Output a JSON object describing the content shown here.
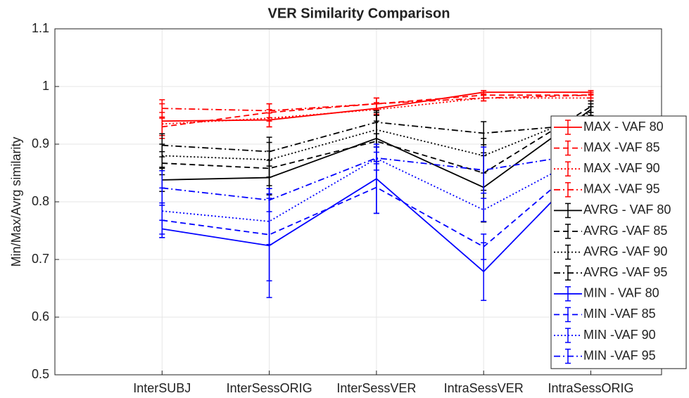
{
  "chart_data": {
    "type": "line",
    "title": "VER Similarity Comparison",
    "y_label": "Min/Max/Avrg similarity",
    "categories": [
      "InterSUBJ",
      "InterSessORIG",
      "InterSessVER",
      "IntraSessVER",
      "IntraSessORIG"
    ],
    "ylim": [
      0.5,
      1.1
    ],
    "yticks": [
      0.5,
      0.6,
      0.7,
      0.8,
      0.9,
      1,
      1.1
    ],
    "grid": true,
    "legend": "right",
    "series": [
      {
        "name": "MAX - VAF 80",
        "color": "#ff0000",
        "dash": "solid",
        "values": [
          0.94,
          0.942,
          0.962,
          0.99,
          0.99
        ],
        "errors": [
          0.03,
          0.012,
          0.01,
          0.003,
          0.003
        ]
      },
      {
        "name": "MAX -VAF 85",
        "color": "#ff0000",
        "dash": "dashed",
        "values": [
          0.93,
          0.955,
          0.97,
          0.985,
          0.985
        ],
        "errors": [
          0.015,
          0.015,
          0.01,
          0.005,
          0.005
        ]
      },
      {
        "name": "MAX -VAF 90",
        "color": "#ff0000",
        "dash": "dotted",
        "values": [
          0.935,
          0.945,
          0.96,
          0.98,
          0.98
        ],
        "errors": [
          0.02,
          0.015,
          0.01,
          0.005,
          0.005
        ]
      },
      {
        "name": "MAX -VAF 95",
        "color": "#ff0000",
        "dash": "dashdot",
        "values": [
          0.962,
          0.958,
          0.97,
          0.98,
          0.985
        ],
        "errors": [
          0.015,
          0.012,
          0.01,
          0.005,
          0.005
        ]
      },
      {
        "name": "AVRG - VAF 80",
        "color": "#000000",
        "dash": "solid",
        "values": [
          0.838,
          0.842,
          0.91,
          0.825,
          0.96
        ],
        "errors": [
          0.02,
          0.03,
          0.04,
          0.06,
          0.01
        ]
      },
      {
        "name": "AVRG -VAF 85",
        "color": "#000000",
        "dash": "dashed",
        "values": [
          0.867,
          0.858,
          0.905,
          0.85,
          0.965
        ],
        "errors": [
          0.02,
          0.03,
          0.035,
          0.03,
          0.01
        ]
      },
      {
        "name": "AVRG -VAF 90",
        "color": "#000000",
        "dash": "dotted",
        "values": [
          0.88,
          0.873,
          0.925,
          0.88,
          0.955
        ],
        "errors": [
          0.02,
          0.03,
          0.03,
          0.03,
          0.01
        ]
      },
      {
        "name": "AVRG -VAF 95",
        "color": "#000000",
        "dash": "dashdot",
        "values": [
          0.898,
          0.887,
          0.938,
          0.919,
          0.935
        ],
        "errors": [
          0.02,
          0.025,
          0.02,
          0.02,
          0.01
        ]
      },
      {
        "name": "MIN - VAF 80",
        "color": "#0000ff",
        "dash": "solid",
        "values": [
          0.753,
          0.724,
          0.84,
          0.679,
          0.87
        ],
        "errors": [
          0.015,
          0.09,
          0.06,
          0.05,
          0.02
        ]
      },
      {
        "name": "MIN -VAF 85",
        "color": "#0000ff",
        "dash": "dashed",
        "values": [
          0.768,
          0.743,
          0.825,
          0.722,
          0.88
        ],
        "errors": [
          0.03,
          0.08,
          0.045,
          0.022,
          0.02
        ]
      },
      {
        "name": "MIN -VAF 90",
        "color": "#0000ff",
        "dash": "dotted",
        "values": [
          0.784,
          0.766,
          0.875,
          0.786,
          0.885
        ],
        "errors": [
          0.04,
          0.04,
          0.02,
          0.02,
          0.02
        ]
      },
      {
        "name": "MIN -VAF 95",
        "color": "#0000ff",
        "dash": "dashdot",
        "values": [
          0.824,
          0.803,
          0.876,
          0.855,
          0.885
        ],
        "errors": [
          0.03,
          0.02,
          0.01,
          0.04,
          0.02
        ]
      }
    ]
  }
}
